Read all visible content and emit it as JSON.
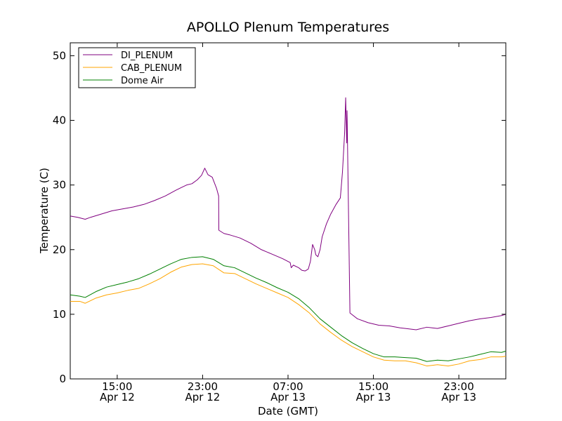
{
  "chart_data": {
    "type": "line",
    "title": "APOLLO Plenum Temperatures",
    "xlabel": "Date (GMT)",
    "ylabel": "Temperature (C)",
    "xlim_hours": [
      10.6,
      51.4
    ],
    "ylim": [
      0,
      52
    ],
    "y_ticks": [
      0,
      10,
      20,
      30,
      40,
      50
    ],
    "x_ticks": [
      {
        "hour": 15,
        "time": "15:00",
        "date": "Apr 12"
      },
      {
        "hour": 23,
        "time": "23:00",
        "date": "Apr 12"
      },
      {
        "hour": 31,
        "time": "07:00",
        "date": "Apr 13"
      },
      {
        "hour": 39,
        "time": "15:00",
        "date": "Apr 13"
      },
      {
        "hour": 47,
        "time": "23:00",
        "date": "Apr 13"
      }
    ],
    "x_units": "hours since Apr 12 00:00 GMT",
    "legend_position": "top-left",
    "series": [
      {
        "name": "DI_PLENUM",
        "color": "#800080",
        "x": [
          10.6,
          11.3,
          12.0,
          12.5,
          13.5,
          14.5,
          15.5,
          16.5,
          17.5,
          18.5,
          19.5,
          20.5,
          21.0,
          21.5,
          22.0,
          22.5,
          22.9,
          23.2,
          23.5,
          23.9,
          24.3,
          24.5,
          24.52,
          25.0,
          25.5,
          26.5,
          27.5,
          28.5,
          29.5,
          30.5,
          31.2,
          31.3,
          31.5,
          32.0,
          32.3,
          32.6,
          32.9,
          33.1,
          33.3,
          33.5,
          33.6,
          33.8,
          34.0,
          34.2,
          34.6,
          35.0,
          35.5,
          35.9,
          36.1,
          36.3,
          36.4,
          36.5,
          36.53,
          36.8,
          37.5,
          38.5,
          39.5,
          40.5,
          41.5,
          42.0,
          43.0,
          44.0,
          44.5,
          45.0,
          46.0,
          47.0,
          48.0,
          49.0,
          50.0,
          51.0,
          51.4
        ],
        "values": [
          25.2,
          25.0,
          24.7,
          25.0,
          25.5,
          26.0,
          26.3,
          26.6,
          27.0,
          27.6,
          28.3,
          29.2,
          29.6,
          30.0,
          30.2,
          30.8,
          31.5,
          32.6,
          31.6,
          31.2,
          29.5,
          28.3,
          23.0,
          22.5,
          22.3,
          21.8,
          21.0,
          20.0,
          19.3,
          18.6,
          18.0,
          17.2,
          17.6,
          17.2,
          16.8,
          16.7,
          17.0,
          18.2,
          20.8,
          20.0,
          19.2,
          18.9,
          20.0,
          22.0,
          24.0,
          25.5,
          27.0,
          28.0,
          32.0,
          38.0,
          43.5,
          36.5,
          41.5,
          10.2,
          9.3,
          8.7,
          8.3,
          8.2,
          7.9,
          7.8,
          7.6,
          8.0,
          7.9,
          7.8,
          8.2,
          8.6,
          9.0,
          9.3,
          9.5,
          9.8,
          10.0
        ]
      },
      {
        "name": "CAB_PLENUM",
        "color": "#FFA500",
        "x": [
          10.6,
          11.5,
          12.0,
          13.0,
          14.0,
          15.0,
          16.0,
          17.0,
          18.0,
          19.0,
          20.0,
          21.0,
          22.0,
          23.0,
          24.0,
          25.0,
          26.0,
          27.0,
          28.0,
          29.0,
          30.0,
          31.0,
          32.0,
          33.0,
          34.0,
          35.0,
          36.0,
          37.0,
          38.0,
          39.0,
          40.0,
          41.0,
          42.0,
          43.0,
          44.0,
          45.0,
          46.0,
          47.0,
          48.0,
          49.0,
          50.0,
          51.0,
          51.4
        ],
        "values": [
          12.0,
          12.0,
          11.7,
          12.5,
          13.0,
          13.3,
          13.7,
          14.0,
          14.7,
          15.5,
          16.5,
          17.3,
          17.7,
          17.8,
          17.5,
          16.4,
          16.3,
          15.5,
          14.7,
          14.0,
          13.3,
          12.6,
          11.5,
          10.2,
          8.5,
          7.2,
          6.0,
          5.0,
          4.2,
          3.4,
          2.9,
          2.8,
          2.8,
          2.5,
          2.0,
          2.2,
          2.0,
          2.3,
          2.8,
          3.0,
          3.4,
          3.4,
          3.5
        ]
      },
      {
        "name": "Dome Air",
        "color": "#008000",
        "x": [
          10.6,
          11.5,
          12.0,
          13.0,
          14.0,
          15.0,
          16.0,
          17.0,
          18.0,
          19.0,
          20.0,
          21.0,
          22.0,
          23.0,
          24.0,
          25.0,
          26.0,
          27.0,
          28.0,
          29.0,
          30.0,
          31.0,
          32.0,
          33.0,
          34.0,
          35.0,
          36.0,
          37.0,
          38.0,
          39.0,
          40.0,
          41.0,
          42.0,
          43.0,
          44.0,
          45.0,
          46.0,
          47.0,
          48.0,
          49.0,
          50.0,
          51.0,
          51.4
        ],
        "values": [
          13.0,
          12.8,
          12.6,
          13.5,
          14.2,
          14.6,
          15.0,
          15.5,
          16.2,
          17.0,
          17.8,
          18.5,
          18.8,
          18.9,
          18.5,
          17.5,
          17.2,
          16.4,
          15.6,
          14.9,
          14.1,
          13.4,
          12.4,
          11.0,
          9.3,
          8.0,
          6.7,
          5.6,
          4.7,
          3.9,
          3.4,
          3.4,
          3.3,
          3.2,
          2.7,
          2.9,
          2.8,
          3.1,
          3.4,
          3.8,
          4.2,
          4.1,
          4.3
        ]
      }
    ]
  }
}
